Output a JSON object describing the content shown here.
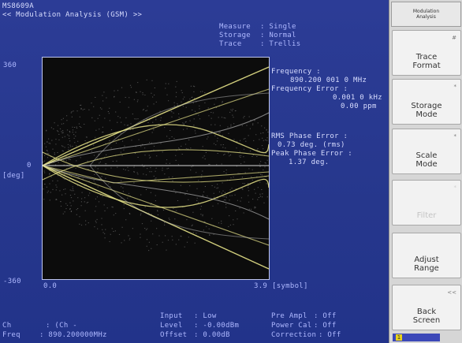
{
  "header": {
    "model": "MS8609A",
    "title": "<< Modulation Analysis (GSM) >>"
  },
  "settings": [
    {
      "label": "Measure",
      "value": ": Single"
    },
    {
      "label": "Storage",
      "value": ": Normal"
    },
    {
      "label": "Trace",
      "value": ": Trellis"
    }
  ],
  "axis": {
    "y_top": "360",
    "y_mid": "0",
    "y_unit": "[deg]",
    "y_bottom": "-360",
    "x_start": "0.0",
    "x_end": "3.9",
    "x_unit": "[symbol]"
  },
  "results": {
    "frequency_label": "Frequency :",
    "frequency_value": "890.200 001 0 MHz",
    "freq_error_label": "Frequency Error :",
    "freq_error_khz": "0.001 0 kHz",
    "freq_error_ppm": "0.00 ppm",
    "rms_label": "RMS Phase Error :",
    "rms_value": "0.73 deg. (rms)",
    "peak_label": "Peak Phase Error :",
    "peak_value": "1.37 deg."
  },
  "footer": {
    "ch_label": "Ch",
    "ch_value": ": (Ch -",
    "freq_label": "Freq",
    "freq_value": ": 890.200000MHz",
    "input_label": "Input",
    "input_value": ": Low",
    "level_label": "Level",
    "level_value": ": -0.00dBm",
    "offset_label": "Offset",
    "offset_value": ": 0.00dB",
    "preampl_label": "Pre Ampl",
    "preampl_value": ": Off",
    "powercal_label": "Power Cal",
    "powercal_value": ": Off",
    "correction_label": "Correction",
    "correction_value": ": Off"
  },
  "softkeys": {
    "title_line1": "Modulation",
    "title_line2": "Analysis",
    "keys": [
      {
        "line1": "Trace",
        "line2": "Format",
        "mark": "#"
      },
      {
        "line1": "Storage",
        "line2": "Mode",
        "mark": "*"
      },
      {
        "line1": "Scale",
        "line2": "Mode",
        "mark": "*"
      },
      {
        "line1": "Filter",
        "line2": "",
        "mark": "*"
      },
      {
        "line1": "Adjust",
        "line2": "Range",
        "mark": ""
      },
      {
        "line1": "Back",
        "line2": "Screen",
        "mark": "<<"
      }
    ]
  },
  "status_indicator": "1",
  "colors": {
    "screen_bg": "#2a3a8e",
    "text": "#aeb8ff",
    "trace": "#e8e48a",
    "plot_bg": "#0c0c0c"
  }
}
